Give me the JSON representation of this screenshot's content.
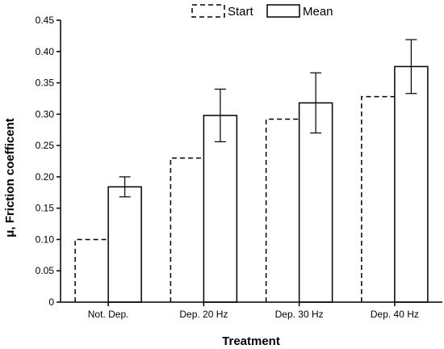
{
  "chart_data": {
    "type": "bar",
    "title": "",
    "xlabel": "Treatment",
    "ylabel": "μ, Friction coefficent",
    "categories": [
      "Not. Dep.",
      "Dep. 20 Hz",
      "Dep. 30 Hz",
      "Dep. 40 Hz"
    ],
    "ylim": [
      0,
      0.45
    ],
    "yticks": [
      "0",
      "0.05",
      "0.10",
      "0.15",
      "0.20",
      "0.25",
      "0.30",
      "0.35",
      "0.40",
      "0.45"
    ],
    "grid": false,
    "legend_position": "top-center",
    "series": [
      {
        "name": "Start",
        "style": "dashed",
        "values": [
          0.1,
          0.23,
          0.292,
          0.328
        ]
      },
      {
        "name": "Mean",
        "style": "solid",
        "values": [
          0.184,
          0.298,
          0.318,
          0.376
        ],
        "error": [
          0.016,
          0.042,
          0.048,
          0.043
        ]
      }
    ]
  }
}
